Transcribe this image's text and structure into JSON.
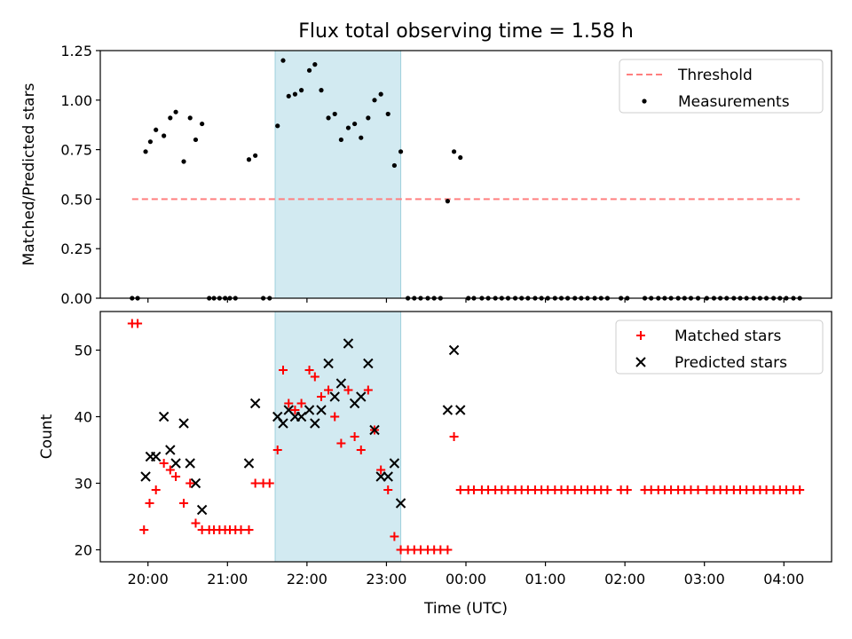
{
  "title": "Flux total observing time = 1.58 h",
  "colors": {
    "threshold": "#ff7f7f",
    "measurement": "#000000",
    "matched": "#ff0000",
    "predicted": "#000000",
    "highlight": "#add8e6"
  },
  "chart_data": [
    {
      "type": "scatter",
      "panel": "top",
      "xlabel": "",
      "ylabel": "Matched/Predicted stars",
      "x_unit": "hours UTC (after 24:00 = next day)",
      "xlim": [
        19.4,
        28.6
      ],
      "ylim": [
        0,
        1.25
      ],
      "yticks": [
        "0.00",
        "0.25",
        "0.50",
        "0.75",
        "1.00",
        "1.25"
      ],
      "grid": false,
      "legend": {
        "position": "top-right",
        "entries": [
          "Threshold",
          "Measurements"
        ]
      },
      "highlight_span": [
        21.6,
        23.18
      ],
      "series": [
        {
          "name": "Threshold",
          "kind": "dashed-line",
          "x": [
            19.8,
            28.2
          ],
          "y": [
            0.5,
            0.5
          ]
        },
        {
          "name": "Measurements",
          "kind": "dot",
          "x": [
            19.8,
            19.87,
            19.97,
            20.03,
            20.1,
            20.2,
            20.28,
            20.35,
            20.45,
            20.53,
            20.6,
            20.68,
            20.77,
            20.83,
            20.9,
            20.97,
            21.03,
            21.1,
            21.27,
            21.35,
            21.45,
            21.53,
            21.63,
            21.7,
            21.77,
            21.85,
            21.93,
            22.03,
            22.1,
            22.18,
            22.27,
            22.35,
            22.43,
            22.52,
            22.6,
            22.68,
            22.77,
            22.85,
            22.93,
            23.02,
            23.1,
            23.18,
            23.27,
            23.35,
            23.43,
            23.52,
            23.6,
            23.68,
            23.77,
            23.85,
            23.93,
            24.03,
            24.1,
            24.2,
            24.28,
            24.37,
            24.45,
            24.53,
            24.62,
            24.7,
            24.78,
            24.87,
            24.95,
            25.03,
            25.12,
            25.2,
            25.28,
            25.37,
            25.45,
            25.53,
            25.62,
            25.7,
            25.78,
            25.95,
            26.03,
            26.25,
            26.33,
            26.42,
            26.5,
            26.58,
            26.67,
            26.75,
            26.83,
            26.92,
            27.03,
            27.12,
            27.2,
            27.28,
            27.37,
            27.45,
            27.53,
            27.62,
            27.7,
            27.78,
            27.87,
            27.95,
            28.03,
            28.12,
            28.2
          ],
          "y": [
            0,
            0,
            0.74,
            0.79,
            0.85,
            0.82,
            0.91,
            0.94,
            0.69,
            0.91,
            0.8,
            0.88,
            0,
            0,
            0,
            0,
            0,
            0,
            0.7,
            0.72,
            0,
            0,
            0.87,
            1.2,
            1.02,
            1.03,
            1.05,
            1.15,
            1.18,
            1.05,
            0.91,
            0.93,
            0.8,
            0.86,
            0.88,
            0.81,
            0.91,
            1.0,
            1.03,
            0.93,
            0.67,
            0.74,
            0,
            0,
            0,
            0,
            0,
            0,
            0.49,
            0.74,
            0.71,
            0,
            0,
            0,
            0,
            0,
            0,
            0,
            0,
            0,
            0,
            0,
            0,
            0,
            0,
            0,
            0,
            0,
            0,
            0,
            0,
            0,
            0,
            0,
            0,
            0,
            0,
            0,
            0,
            0,
            0,
            0,
            0,
            0,
            0,
            0,
            0,
            0,
            0,
            0,
            0,
            0,
            0,
            0,
            0,
            0,
            0,
            0,
            0
          ]
        }
      ]
    },
    {
      "type": "scatter",
      "panel": "bottom",
      "xlabel": "Time (UTC)",
      "ylabel": "Count",
      "x_unit": "hours UTC (after 24:00 = next day)",
      "xlim": [
        19.4,
        28.6
      ],
      "ylim": [
        18.2,
        55.8
      ],
      "xticks": [
        {
          "x": 20,
          "label": "20:00"
        },
        {
          "x": 21,
          "label": "21:00"
        },
        {
          "x": 22,
          "label": "22:00"
        },
        {
          "x": 23,
          "label": "23:00"
        },
        {
          "x": 24,
          "label": "00:00"
        },
        {
          "x": 25,
          "label": "01:00"
        },
        {
          "x": 26,
          "label": "02:00"
        },
        {
          "x": 27,
          "label": "03:00"
        },
        {
          "x": 28,
          "label": "04:00"
        }
      ],
      "yticks": [
        "20",
        "30",
        "40",
        "50"
      ],
      "grid": false,
      "legend": {
        "position": "top-right",
        "entries": [
          "Matched stars",
          "Predicted stars"
        ]
      },
      "highlight_span": [
        21.6,
        23.18
      ],
      "series": [
        {
          "name": "Matched stars",
          "marker": "plus",
          "x": [
            19.8,
            19.87,
            19.95,
            20.02,
            20.1,
            20.2,
            20.28,
            20.35,
            20.45,
            20.53,
            20.6,
            20.68,
            20.77,
            20.83,
            20.9,
            20.97,
            21.03,
            21.1,
            21.17,
            21.27,
            21.35,
            21.45,
            21.53,
            21.63,
            21.7,
            21.77,
            21.85,
            21.93,
            22.03,
            22.1,
            22.18,
            22.27,
            22.35,
            22.43,
            22.52,
            22.6,
            22.68,
            22.77,
            22.85,
            22.93,
            23.02,
            23.1,
            23.18,
            23.27,
            23.35,
            23.43,
            23.52,
            23.6,
            23.68,
            23.77,
            23.85,
            23.93,
            24.03,
            24.1,
            24.2,
            24.28,
            24.37,
            24.45,
            24.53,
            24.62,
            24.7,
            24.78,
            24.87,
            24.95,
            25.03,
            25.12,
            25.2,
            25.28,
            25.37,
            25.45,
            25.53,
            25.62,
            25.7,
            25.78,
            25.95,
            26.03,
            26.25,
            26.33,
            26.42,
            26.5,
            26.58,
            26.67,
            26.75,
            26.83,
            26.92,
            27.03,
            27.12,
            27.2,
            27.28,
            27.37,
            27.45,
            27.53,
            27.62,
            27.7,
            27.78,
            27.87,
            27.95,
            28.03,
            28.12,
            28.2
          ],
          "y": [
            54,
            54,
            23,
            27,
            29,
            33,
            32,
            31,
            27,
            30,
            24,
            23,
            23,
            23,
            23,
            23,
            23,
            23,
            23,
            23,
            30,
            30,
            30,
            35,
            47,
            42,
            41,
            42,
            47,
            46,
            43,
            44,
            40,
            36,
            44,
            37,
            35,
            44,
            38,
            32,
            29,
            22,
            20,
            20,
            20,
            20,
            20,
            20,
            20,
            20,
            37,
            29,
            29,
            29,
            29,
            29,
            29,
            29,
            29,
            29,
            29,
            29,
            29,
            29,
            29,
            29,
            29,
            29,
            29,
            29,
            29,
            29,
            29,
            29,
            29,
            29,
            29,
            29,
            29,
            29,
            29,
            29,
            29,
            29,
            29,
            29,
            29,
            29,
            29,
            29,
            29,
            29,
            29,
            29,
            29,
            29,
            29,
            29,
            29,
            29
          ]
        },
        {
          "name": "Predicted stars",
          "marker": "x",
          "x": [
            19.97,
            20.03,
            20.1,
            20.2,
            20.28,
            20.35,
            20.45,
            20.53,
            20.6,
            20.68,
            21.27,
            21.35,
            21.63,
            21.7,
            21.77,
            21.85,
            21.93,
            22.03,
            22.1,
            22.18,
            22.27,
            22.35,
            22.43,
            22.52,
            22.6,
            22.68,
            22.77,
            22.85,
            22.93,
            23.02,
            23.1,
            23.18,
            23.77,
            23.85,
            23.93
          ],
          "y": [
            31,
            34,
            34,
            40,
            35,
            33,
            39,
            33,
            30,
            26,
            33,
            42,
            40,
            39,
            41,
            40,
            40,
            41,
            39,
            41,
            48,
            43,
            45,
            51,
            42,
            43,
            48,
            38,
            31,
            31,
            33,
            27,
            41,
            50,
            41
          ]
        }
      ]
    }
  ]
}
